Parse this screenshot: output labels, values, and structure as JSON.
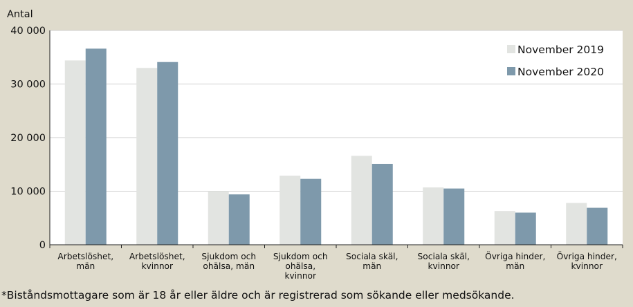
{
  "chart_data": {
    "type": "bar",
    "ylabel": "Antal",
    "ylim": [
      0,
      40000
    ],
    "yticks": [
      0,
      10000,
      20000,
      30000,
      40000
    ],
    "ytick_labels": [
      "0",
      "10 000",
      "20 000",
      "30 000",
      "40 000"
    ],
    "grid": true,
    "legend_position": "top-right",
    "categories": [
      [
        "Arbetslöshet,",
        "män"
      ],
      [
        "Arbetslöshet,",
        "kvinnor"
      ],
      [
        "Sjukdom och",
        "ohälsa, män"
      ],
      [
        "Sjukdom och",
        "ohälsa,",
        "kvinnor"
      ],
      [
        "Sociala skäl,",
        "män"
      ],
      [
        "Sociala skäl,",
        "kvinnor"
      ],
      [
        "Övriga hinder,",
        "män"
      ],
      [
        "Övriga hinder,",
        "kvinnor"
      ]
    ],
    "series": [
      {
        "name": "November 2019",
        "color": "#e2e4e1",
        "values": [
          34400,
          33000,
          10000,
          12900,
          16600,
          10700,
          6300,
          7800
        ]
      },
      {
        "name": "November 2020",
        "color": "#7e99ab",
        "values": [
          36600,
          34100,
          9400,
          12300,
          15100,
          10500,
          6000,
          6900
        ]
      }
    ]
  },
  "footnote": "*Biståndsmottagare som är 18 år eller äldre och är registrerad som sökande eller medsökande."
}
